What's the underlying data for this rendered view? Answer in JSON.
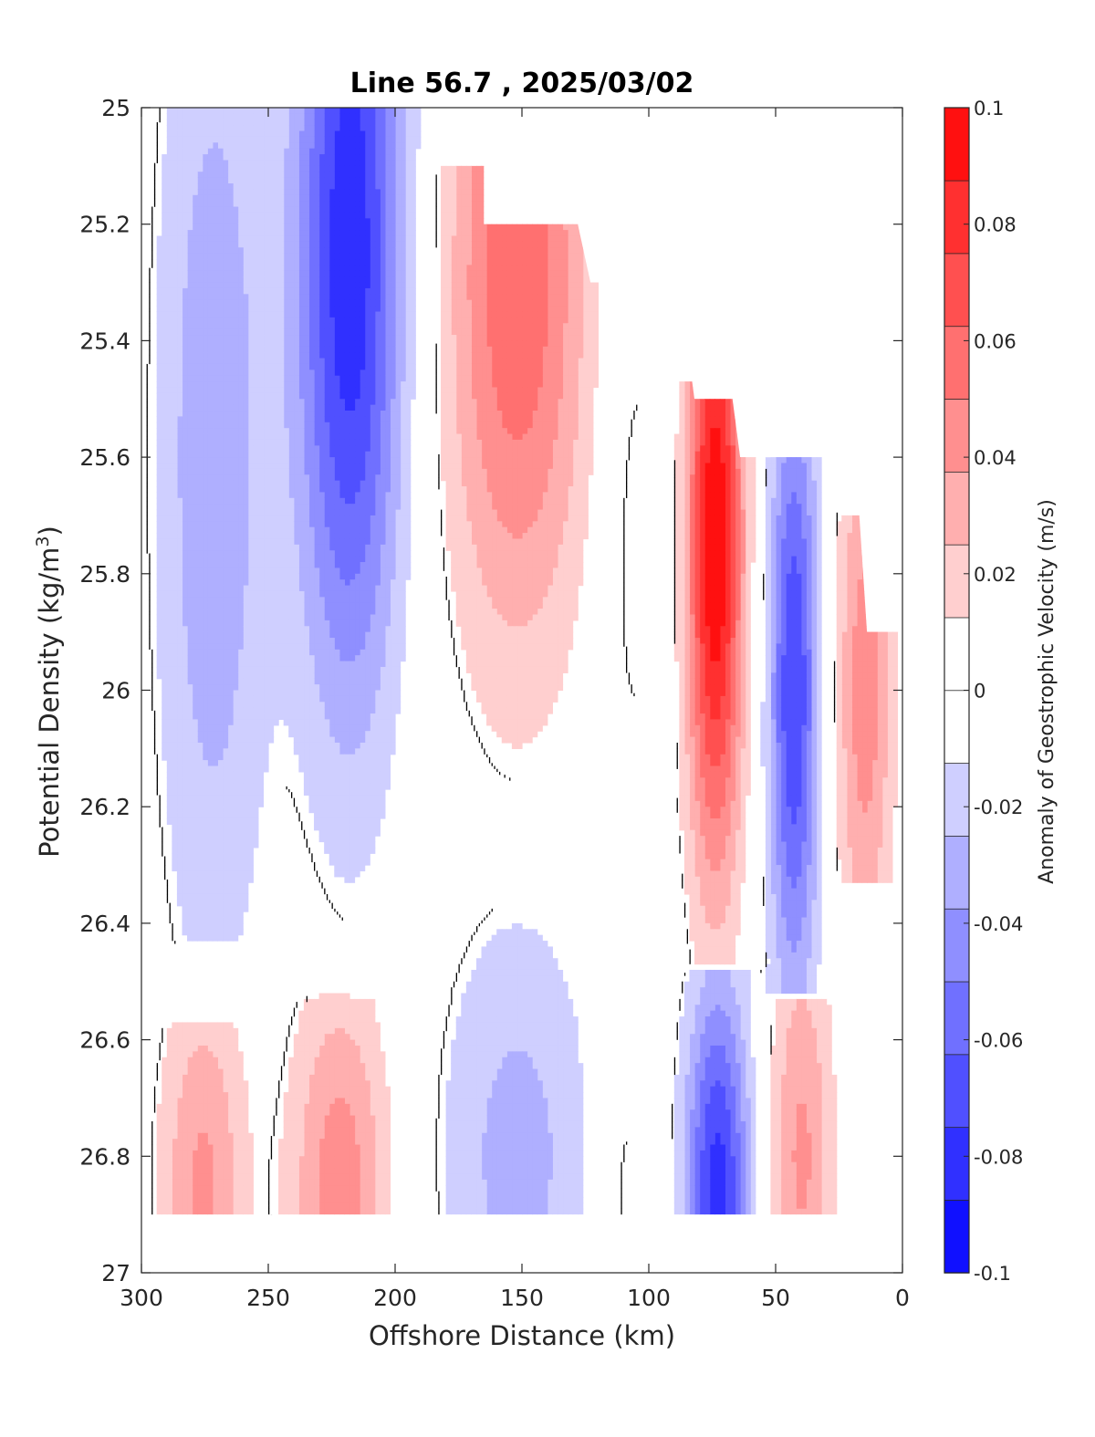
{
  "chart_data": {
    "type": "heatmap",
    "subtype": "filled-contour section",
    "title": "Line 56.7 , 2025/03/02",
    "xlabel": "Offshore Distance (km)",
    "ylabel": "Potential Density (kg/m³)",
    "ylabel_parts": {
      "text": "Potential Density (kg/m",
      "sup": "3",
      "close": ")"
    },
    "colorbar_label": "Anomaly of Geostrophic Velocity (m/s)",
    "xlim": [
      300,
      0
    ],
    "x_reversed": true,
    "ylim": [
      25,
      27
    ],
    "y_reversed": true,
    "x_ticks": [
      "300",
      "250",
      "200",
      "150",
      "100",
      "50",
      "0"
    ],
    "y_ticks": [
      "25",
      "25.2",
      "25.4",
      "25.6",
      "25.8",
      "26",
      "26.2",
      "26.4",
      "26.6",
      "26.8",
      "27"
    ],
    "colorbar_ticks": [
      "0.1",
      "0.08",
      "0.06",
      "0.04",
      "0.02",
      "0",
      "-0.02",
      "-0.04",
      "-0.06",
      "-0.08",
      "-0.1"
    ],
    "colorbar_range": [
      -0.1,
      0.1
    ],
    "contour_levels": [
      -0.1,
      -0.09,
      -0.08,
      -0.07,
      -0.06,
      -0.05,
      -0.04,
      -0.03,
      -0.02,
      -0.01,
      0.01,
      0.02,
      0.03,
      0.04,
      0.05,
      0.06,
      0.07,
      0.08,
      0.09,
      0.1
    ],
    "zero_contour": true,
    "colormap": {
      "negative": "#0000ff",
      "zero": "#ffffff",
      "positive": "#ff0000"
    },
    "features": [
      {
        "x": 218,
        "y": 25.25,
        "value": -0.085,
        "sx": 15,
        "sy": 0.55,
        "top": 25.0,
        "bottom": 26.5
      },
      {
        "x": 272,
        "y": 25.6,
        "value": -0.035,
        "sx": 16,
        "sy": 0.65,
        "top": 25.0,
        "bottom": 26.4
      },
      {
        "x": 152,
        "y": 25.3,
        "value": 0.06,
        "sx": 20,
        "sy": 0.45,
        "top": 25.1,
        "bottom": 26.15
      },
      {
        "x": 106,
        "y": 25.7,
        "value": -0.015,
        "sx": 10,
        "sy": 0.4,
        "top": 25.3,
        "bottom": 26.15
      },
      {
        "x": 74,
        "y": 25.75,
        "value": 0.1,
        "sx": 8,
        "sy": 0.4,
        "top": 25.5,
        "bottom": 26.45
      },
      {
        "x": 43,
        "y": 26.0,
        "value": -0.075,
        "sx": 7,
        "sy": 0.38,
        "top": 25.6,
        "bottom": 26.5
      },
      {
        "x": 15,
        "y": 26.0,
        "value": 0.045,
        "sx": 8,
        "sy": 0.35,
        "top": 25.7,
        "bottom": 26.3
      },
      {
        "x": 222,
        "y": 26.85,
        "value": 0.045,
        "sx": 14,
        "sy": 0.25,
        "top": 26.55,
        "bottom": 26.9
      },
      {
        "x": 276,
        "y": 26.85,
        "value": 0.04,
        "sx": 12,
        "sy": 0.25,
        "top": 26.6,
        "bottom": 26.9
      },
      {
        "x": 152,
        "y": 26.8,
        "value": -0.03,
        "sx": 22,
        "sy": 0.3,
        "top": 26.4,
        "bottom": 26.9
      },
      {
        "x": 73,
        "y": 26.85,
        "value": -0.08,
        "sx": 9,
        "sy": 0.25,
        "top": 26.5,
        "bottom": 26.9
      },
      {
        "x": 40,
        "y": 26.8,
        "value": 0.04,
        "sx": 9,
        "sy": 0.28,
        "top": 26.55,
        "bottom": 26.9
      },
      {
        "x": 110,
        "y": 26.85,
        "value": 0.015,
        "sx": 8,
        "sy": 0.3,
        "top": 26.6,
        "bottom": 26.9
      }
    ],
    "data_top_boundary": [
      [
        300,
        25.0
      ],
      [
        182,
        25.0
      ],
      [
        182,
        25.1
      ],
      [
        165,
        25.1
      ],
      [
        165,
        25.2
      ],
      [
        128,
        25.2
      ],
      [
        123,
        25.3
      ],
      [
        95,
        25.3
      ],
      [
        93,
        25.4
      ],
      [
        85,
        25.4
      ],
      [
        82,
        25.5
      ],
      [
        67,
        25.5
      ],
      [
        64,
        25.6
      ],
      [
        30,
        25.6
      ],
      [
        24,
        25.7
      ],
      [
        17,
        25.7
      ],
      [
        14,
        25.9
      ],
      [
        0,
        25.9
      ]
    ],
    "data_bottom": 26.9
  }
}
